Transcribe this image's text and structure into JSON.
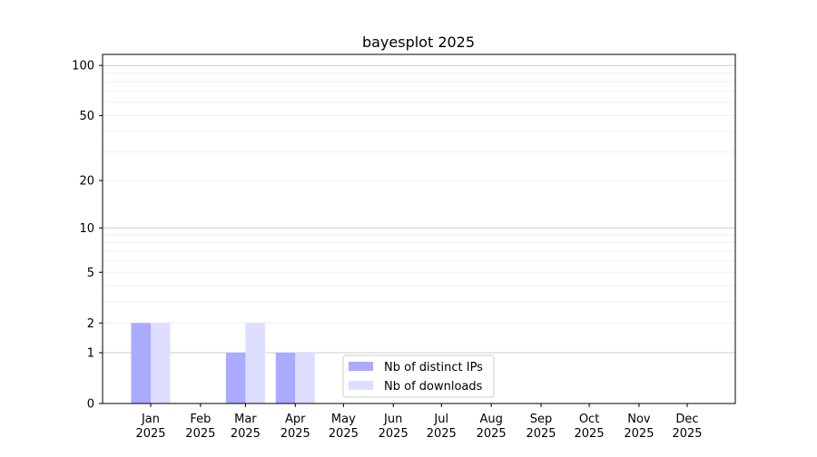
{
  "chart_data": {
    "type": "bar",
    "title": "bayesplot 2025",
    "xlabel": "",
    "ylabel": "",
    "yscale": "log(1+y)",
    "ylim": [
      0,
      116
    ],
    "yticks": [
      0,
      1,
      2,
      5,
      10,
      20,
      50,
      100
    ],
    "grid": true,
    "legend_position": "lower-center",
    "categories": [
      "Jan\n2025",
      "Feb\n2025",
      "Mar\n2025",
      "Apr\n2025",
      "May\n2025",
      "Jun\n2025",
      "Jul\n2025",
      "Aug\n2025",
      "Sep\n2025",
      "Oct\n2025",
      "Nov\n2025",
      "Dec\n2025"
    ],
    "month_labels": [
      "Jan",
      "Feb",
      "Mar",
      "Apr",
      "May",
      "Jun",
      "Jul",
      "Aug",
      "Sep",
      "Oct",
      "Nov",
      "Dec"
    ],
    "year_label": "2025",
    "series": [
      {
        "name": "Nb of distinct IPs",
        "color": "#aaaaff",
        "values": [
          2,
          0,
          1,
          1,
          0,
          0,
          0,
          0,
          0,
          0,
          0,
          0
        ]
      },
      {
        "name": "Nb of downloads",
        "color": "#ddddff",
        "values": [
          2,
          0,
          2,
          1,
          0,
          0,
          0,
          0,
          0,
          0,
          0,
          0
        ]
      }
    ]
  }
}
